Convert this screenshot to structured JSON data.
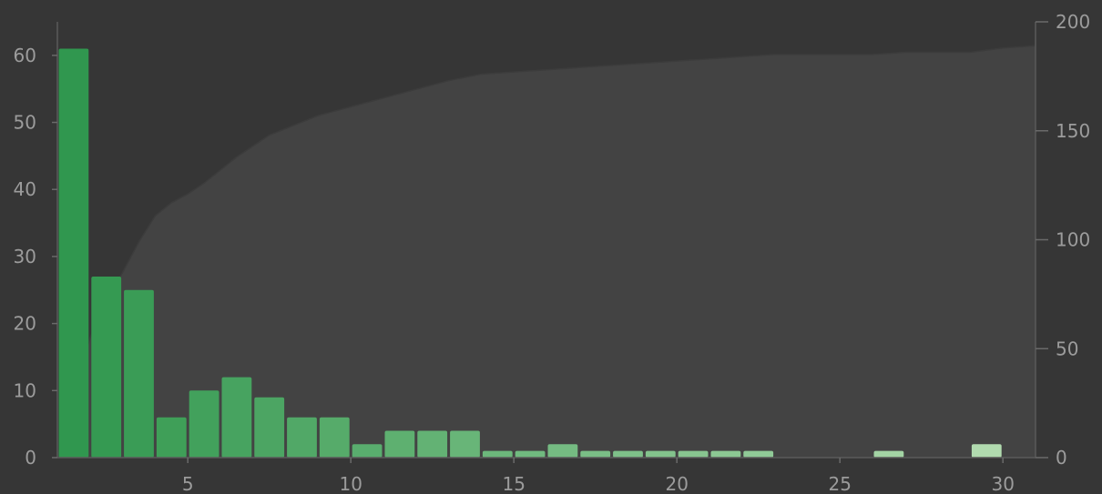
{
  "chart_data": {
    "type": "bar",
    "title": "",
    "xlabel": "",
    "ylabel": "",
    "ylabel_right": "",
    "xlim": [
      1,
      31
    ],
    "ylim": [
      0,
      65
    ],
    "ylim_right": [
      0,
      200
    ],
    "x_ticks": [
      5,
      10,
      15,
      20,
      25,
      30
    ],
    "y_ticks": [
      0,
      10,
      20,
      30,
      40,
      50,
      60
    ],
    "y_right_ticks": [
      0,
      50,
      100,
      150,
      200
    ],
    "grid": false,
    "legend": "none",
    "colors": {
      "bar_dark": "#2e9a4e",
      "bar_light": "#bde6b9",
      "cumulative_fill": "#434343",
      "cumulative_line": "#3c3c3c"
    },
    "series": [
      {
        "kind": "bar",
        "axis": "left",
        "x": [
          1.5,
          2.5,
          3.5,
          4.5,
          5.5,
          6.5,
          7.5,
          8.5,
          9.5,
          10.5,
          11.5,
          12.5,
          13.5,
          14.5,
          15.5,
          16.5,
          17.5,
          18.5,
          19.5,
          20.5,
          21.5,
          22.5,
          23.5,
          24.5,
          25.5,
          26.5,
          27.5,
          28.5,
          29.5,
          30.5
        ],
        "values": [
          61,
          27,
          25,
          6,
          10,
          12,
          9,
          6,
          6,
          2,
          4,
          4,
          4,
          1,
          1,
          2,
          1,
          1,
          1,
          1,
          1,
          1,
          0,
          0,
          0,
          1,
          0,
          0,
          2,
          0
        ]
      },
      {
        "kind": "area",
        "axis": "right",
        "x": [
          1,
          1.5,
          2,
          2.5,
          3,
          3.5,
          4,
          4.5,
          5,
          5.5,
          6,
          6.5,
          7,
          7.5,
          8,
          8.5,
          9,
          9.5,
          10,
          11,
          12,
          13,
          14,
          15,
          16,
          17,
          18,
          19,
          20,
          21,
          22,
          23,
          24,
          25,
          26,
          27,
          28,
          29,
          30,
          31
        ],
        "values": [
          0,
          30,
          55,
          72,
          85,
          99,
          111,
          117,
          121,
          126,
          132,
          138,
          143,
          148,
          151,
          154,
          157,
          159,
          161,
          165,
          169,
          173,
          176,
          177,
          178,
          179,
          180,
          181,
          182,
          183,
          184,
          185,
          185,
          185,
          185,
          186,
          186,
          186,
          188,
          189
        ]
      }
    ]
  }
}
